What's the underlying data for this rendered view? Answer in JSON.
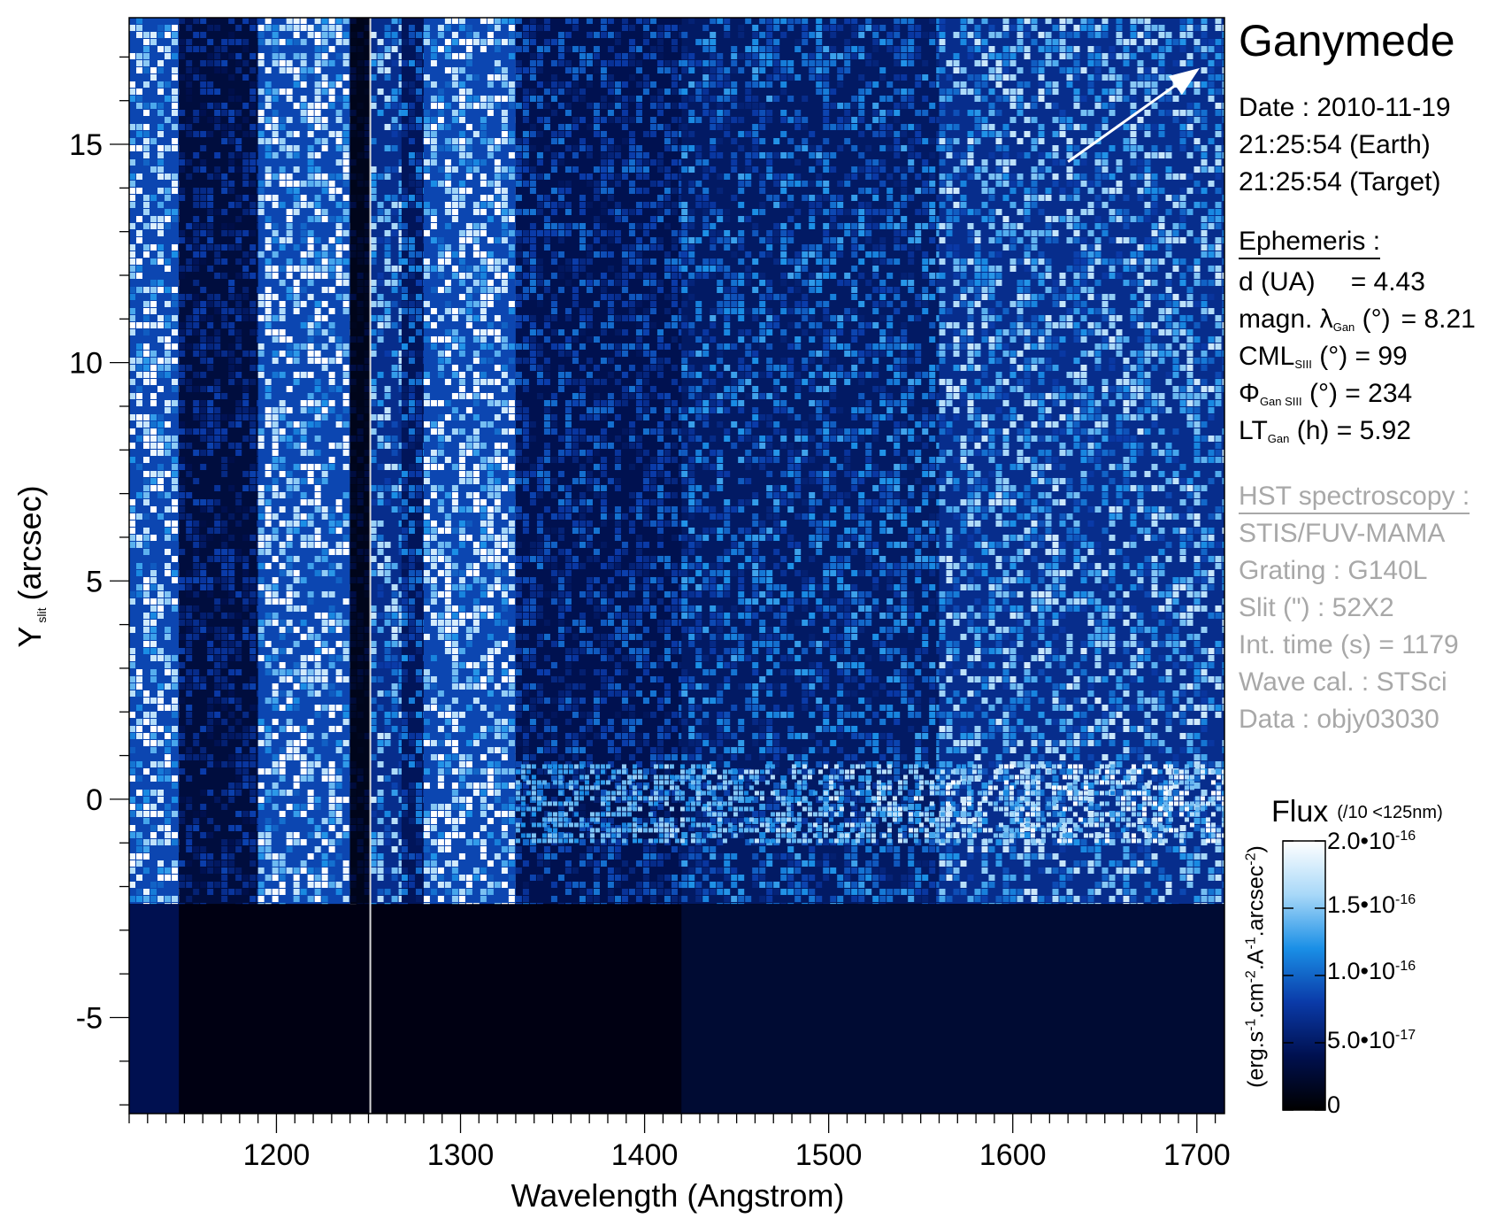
{
  "panel": {
    "target": "Ganymede",
    "date_label": "Date : 2010-11-19",
    "time_earth": "21:25:54 (Earth)",
    "time_target": "21:25:54 (Target)",
    "ephemeris_heading": "Ephemeris :",
    "eph_d_label": "d (UA)",
    "eph_d_value": "= 4.43",
    "eph_lat_prefix": "magn. λ",
    "eph_lat_sub": "Gan",
    "eph_lat_suffix": "(°)",
    "eph_lat_value": "= 8.21",
    "eph_cml_prefix": "CML",
    "eph_cml_sub": "SIII",
    "eph_cml_suffix": "(°) = 99",
    "eph_phi_prefix": "Φ",
    "eph_phi_sub": "Gan SIII",
    "eph_phi_suffix": "(°) = 234",
    "eph_lt_prefix": "LT",
    "eph_lt_sub": "Gan",
    "eph_lt_suffix": "(h) = 5.92",
    "hst_heading": "HST spectroscopy :",
    "instrument": "STIS/FUV-MAMA",
    "grating": "Grating : G140L",
    "slit": "Slit (\") : 52X2",
    "int_time": "Int. time (s) = 1179",
    "wave_cal": "Wave cal. : STSci",
    "data_id": "Data : objy03030"
  },
  "colorbar": {
    "title": "Flux",
    "note": "(/10 <125nm)",
    "unit_a": "(erg.s",
    "unit_b": ".cm",
    "unit_c": ".A",
    "unit_d": ".arcsec",
    "unit_e": ")",
    "unit_exp1": "-1",
    "unit_exp2": "-2",
    "unit_exp3": "-1",
    "unit_exp4": "-2",
    "tick0": "0",
    "tick1_base": "5.0•10",
    "tick1_exp": "-17",
    "tick2_base": "1.0•10",
    "tick2_exp": "-16",
    "tick3_base": "1.5•10",
    "tick3_exp": "-16",
    "tick4_base": "2.0•10",
    "tick4_exp": "-16",
    "colors": [
      "#000000",
      "#00104f",
      "#0a3aa8",
      "#1a8fe6",
      "#a8d8f8",
      "#ffffff"
    ]
  },
  "chart_data": {
    "type": "heatmap",
    "title": "",
    "xlabel": "Wavelength (Angstrom)",
    "ylabel_main": "Y",
    "ylabel_sub": "slit",
    "ylabel_rest": "(arcsec)",
    "xlim": [
      1120,
      1715
    ],
    "ylim": [
      -7.2,
      17.9
    ],
    "x_ticks": [
      1200,
      1300,
      1400,
      1500,
      1600,
      1700
    ],
    "x_tick_labels": [
      "1200",
      "1300",
      "1400",
      "1500",
      "1600",
      "1700"
    ],
    "y_ticks": [
      -5,
      0,
      5,
      10,
      15
    ],
    "y_tick_labels": [
      "-5",
      "0",
      "5",
      "10",
      "15"
    ],
    "x_minor_step": 10,
    "y_minor_step": 1,
    "slit_edge_y": -2.4,
    "slit_break_x": 1251,
    "arrow": {
      "from": [
        1630,
        14.6
      ],
      "to": [
        1700,
        16.7
      ]
    },
    "intensity_bands": [
      {
        "x0": 1120,
        "x1": 1147,
        "level": 0.95
      },
      {
        "x0": 1147,
        "x1": 1190,
        "level": 0.35
      },
      {
        "x0": 1190,
        "x1": 1240,
        "level": 0.95
      },
      {
        "x0": 1240,
        "x1": 1251,
        "level": 0.15
      },
      {
        "x0": 1251,
        "x1": 1268,
        "level": 0.75
      },
      {
        "x0": 1268,
        "x1": 1280,
        "level": 0.5
      },
      {
        "x0": 1280,
        "x1": 1330,
        "level": 0.95
      },
      {
        "x0": 1330,
        "x1": 1420,
        "level": 0.45
      },
      {
        "x0": 1420,
        "x1": 1560,
        "level": 0.55
      },
      {
        "x0": 1560,
        "x1": 1715,
        "level": 0.75
      }
    ],
    "emission_band": {
      "y_center": -0.1,
      "half_width": 0.9
    }
  }
}
